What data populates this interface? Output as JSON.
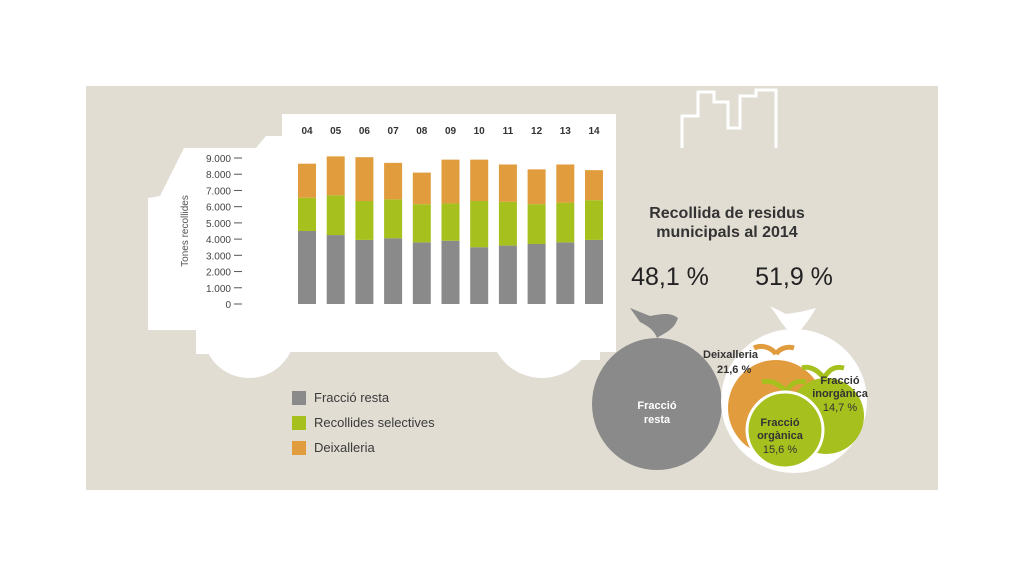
{
  "colors": {
    "resta": "#8a8a8a",
    "selectives": "#a6c01e",
    "deixalleria": "#e19c3d",
    "panel": "#e2ddd3"
  },
  "chart_data": [
    {
      "type": "bar",
      "ylabel": "Tones recollides",
      "ylim": [
        0,
        9000
      ],
      "yticks": [
        "9.000",
        "8.000",
        "7.000",
        "6.000",
        "5.000",
        "4.000",
        "3.000",
        "2.000",
        "1.000",
        "0"
      ],
      "categories": [
        "04",
        "05",
        "06",
        "07",
        "08",
        "09",
        "10",
        "11",
        "12",
        "13",
        "14"
      ],
      "stacked": true,
      "series": [
        {
          "name": "Fracció resta",
          "values": [
            4500,
            4250,
            3950,
            4050,
            3800,
            3900,
            3500,
            3600,
            3700,
            3800,
            3950
          ]
        },
        {
          "name": "Recollides selectives",
          "values": [
            2050,
            2450,
            2400,
            2400,
            2350,
            2300,
            2850,
            2700,
            2450,
            2450,
            2450
          ]
        },
        {
          "name": "Deixalleria",
          "values": [
            2100,
            2400,
            2700,
            2250,
            1950,
            2700,
            2550,
            2300,
            2150,
            2350,
            1850
          ]
        }
      ]
    },
    {
      "type": "pie",
      "title": "Recollida de residus municipals al 2014",
      "groups": [
        {
          "percent": "48,1 %",
          "label": "Fracció resta"
        },
        {
          "percent": "51,9 %",
          "items": [
            {
              "label": "Deixalleria",
              "value": "21,6 %"
            },
            {
              "label": "Fracció inorgànica",
              "value": "14,7 %"
            },
            {
              "label": "Fracció orgànica",
              "value": "15,6 %"
            }
          ]
        }
      ]
    }
  ],
  "legend": [
    "Fracció resta",
    "Recollides selectives",
    "Deixalleria"
  ],
  "title_line1": "Recollida de residus",
  "title_line2": "municipals al 2014",
  "pct_left": "48,1 %",
  "pct_right": "51,9 %",
  "bag_resta_l1": "Fracció",
  "bag_resta_l2": "resta",
  "deix_l1": "Deixalleria",
  "deix_l2": "21,6 %",
  "inorg_l1": "Fracció",
  "inorg_l2": "inorgànica",
  "inorg_l3": "14,7 %",
  "org_l1": "Fracció",
  "org_l2": "orgànica",
  "org_l3": "15,6 %"
}
